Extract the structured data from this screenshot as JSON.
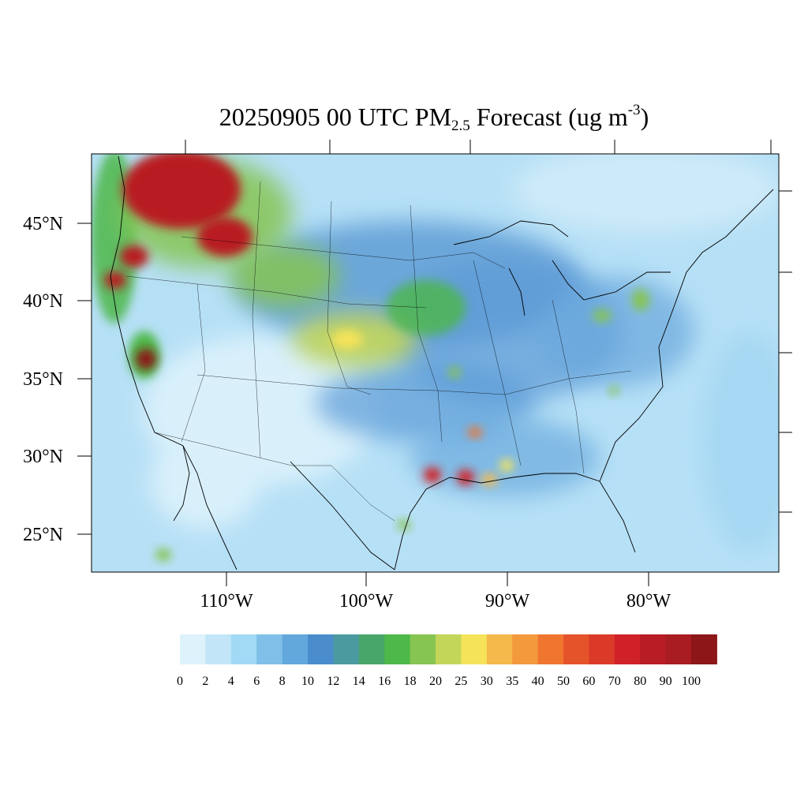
{
  "title": {
    "main": "20250905 00 UTC PM",
    "sub": "2.5",
    "mid": " Forecast (ug m",
    "sup": "-3",
    "end": ")"
  },
  "map": {
    "lat_labels": [
      "45°N",
      "40°N",
      "35°N",
      "30°N",
      "25°N"
    ],
    "lon_labels": [
      "110°W",
      "100°W",
      "90°W",
      "80°W"
    ]
  },
  "colorbar": {
    "colors": [
      "#def2fb",
      "#c2e6f8",
      "#a2d9f5",
      "#80c0e8",
      "#63a8dc",
      "#4a8ccc",
      "#4a9aa0",
      "#48a66a",
      "#4eb84a",
      "#86c552",
      "#c3d65a",
      "#f5e35a",
      "#f5b84a",
      "#f39a3c",
      "#f07630",
      "#e5532a",
      "#db3a28",
      "#d02028",
      "#b81c24",
      "#a81c22",
      "#8c1618"
    ],
    "tick_labels": [
      "0",
      "2",
      "4",
      "6",
      "8",
      "10",
      "12",
      "14",
      "16",
      "18",
      "20",
      "25",
      "30",
      "35",
      "40",
      "50",
      "60",
      "70",
      "80",
      "90",
      "100"
    ]
  },
  "chart_data": {
    "type": "heatmap",
    "title": "20250905 00 UTC PM2.5 Forecast (ug m-3)",
    "variable": "PM2.5",
    "units": "ug m-3",
    "valid_time": "20250905 00 UTC",
    "lat_ticks": [
      45,
      40,
      35,
      30,
      25
    ],
    "lon_ticks": [
      -110,
      -100,
      -90,
      -80
    ],
    "color_levels": [
      0,
      2,
      4,
      6,
      8,
      10,
      12,
      14,
      16,
      18,
      20,
      25,
      30,
      35,
      40,
      50,
      60,
      70,
      80,
      90,
      100
    ]
  }
}
